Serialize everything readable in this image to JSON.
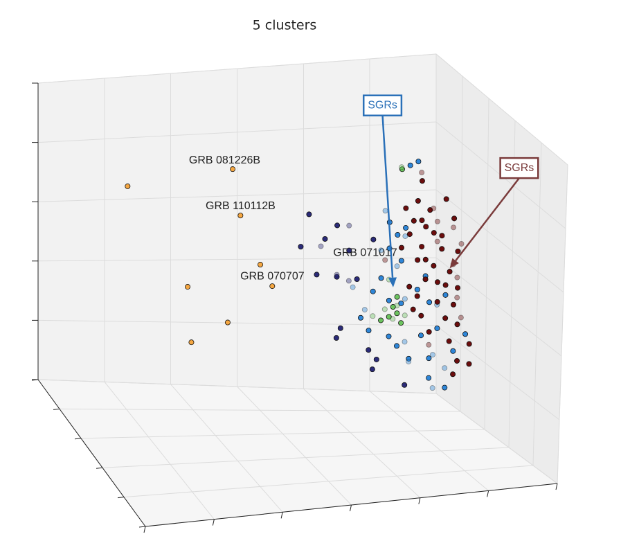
{
  "chart_data": {
    "type": "scatter3d",
    "title": "5 clusters",
    "xlim": [
      0,
      100
    ],
    "ylim": [
      0,
      100
    ],
    "zlim": [
      0,
      100
    ],
    "xticks": [
      0,
      16.7,
      33.3,
      50,
      66.7,
      83.3,
      100
    ],
    "yticks": [
      0,
      20,
      40,
      60,
      80,
      100
    ],
    "zticks": [
      0,
      20,
      40,
      60,
      80,
      100
    ],
    "grid": true,
    "depthshade": true,
    "series": [
      {
        "color": "#f5a742",
        "x": [
          14,
          40,
          42,
          47,
          50,
          29,
          39,
          30
        ],
        "y": [
          30,
          30,
          30,
          30,
          30,
          30,
          30,
          30
        ],
        "z": [
          78,
          81,
          66,
          50,
          43,
          44,
          32,
          26
        ]
      },
      {
        "color": "#2b2b78",
        "x": [
          59,
          66,
          57,
          63,
          72,
          75,
          69,
          65,
          61,
          66,
          69,
          71,
          66,
          74,
          75,
          76,
          83,
          67,
          72
        ],
        "y": [
          30,
          30,
          30,
          30,
          20,
          30,
          30,
          20,
          30,
          30,
          20,
          30,
          30,
          30,
          30,
          30,
          30,
          30,
          20
        ],
        "z": [
          65,
          61,
          55,
          57,
          57,
          56,
          53,
          51,
          46,
          45,
          42,
          44,
          26,
          22,
          16,
          19,
          11,
          29,
          40
        ]
      },
      {
        "color": "#2e86d8",
        "x": [
          84,
          86,
          81,
          81,
          79,
          80,
          77,
          75,
          73,
          79,
          82,
          86,
          89,
          93,
          94,
          91,
          87,
          86,
          84,
          89,
          93,
          95,
          98,
          96,
          89,
          93,
          87,
          81,
          79,
          76,
          72,
          86,
          84,
          82,
          88,
          86,
          83,
          79,
          93,
          74
        ],
        "y": [
          30,
          30,
          20,
          30,
          30,
          20,
          30,
          30,
          20,
          30,
          30,
          20,
          30,
          30,
          20,
          30,
          30,
          20,
          30,
          30,
          20,
          30,
          30,
          20,
          30,
          30,
          20,
          30,
          30,
          20,
          30,
          30,
          20,
          30,
          30,
          20,
          30,
          30,
          20,
          30
        ],
        "z": [
          78,
          79,
          61,
          57,
          53,
          49,
          44,
          40,
          38,
          37,
          36,
          34,
          36,
          38,
          32,
          28,
          26,
          21,
          19,
          19,
          17,
          21,
          26,
          13,
          13,
          10,
          15,
          23,
          26,
          31,
          32,
          40,
          44,
          49,
          44,
          53,
          59,
          61,
          7,
          28
        ]
      },
      {
        "color": "#6cc35f",
        "x": [
          82,
          85,
          79,
          81,
          82,
          78,
          81,
          84,
          80,
          83,
          77,
          86,
          81,
          82
        ],
        "y": [
          30,
          20,
          30,
          20,
          30,
          20,
          30,
          20,
          30,
          20,
          30,
          20,
          30,
          20
        ],
        "z": [
          77,
          74,
          32,
          31,
          30,
          29,
          33,
          32,
          35,
          28,
          31,
          29,
          38,
          40
        ]
      },
      {
        "color": "#6b0d0d",
        "x": [
          86,
          83,
          89,
          93,
          87,
          84,
          90,
          94,
          87,
          92,
          96,
          100,
          86,
          90,
          94,
          98,
          88,
          93,
          96,
          99,
          86,
          91,
          95,
          99,
          87,
          93,
          96,
          100,
          89,
          94,
          99,
          92,
          96,
          99,
          95,
          90,
          87,
          85,
          82,
          81,
          84,
          93,
          95,
          98,
          85,
          91,
          88,
          94,
          92,
          88
        ],
        "y": [
          30,
          30,
          30,
          20,
          30,
          30,
          30,
          20,
          30,
          30,
          30,
          20,
          30,
          30,
          30,
          20,
          30,
          30,
          30,
          20,
          30,
          30,
          30,
          20,
          30,
          30,
          30,
          20,
          30,
          30,
          30,
          20,
          30,
          30,
          30,
          20,
          30,
          30,
          30,
          20,
          30,
          30,
          30,
          20,
          30,
          30,
          30,
          20,
          30,
          30
        ],
        "z": [
          67,
          65,
          64,
          61,
          61,
          57,
          57,
          57,
          53,
          52,
          51,
          50,
          49,
          47,
          45,
          44,
          43,
          41,
          40,
          40,
          38,
          36,
          35,
          34,
          32,
          31,
          29,
          28,
          27,
          24,
          23,
          20,
          18,
          17,
          14,
          72,
          73,
          61,
          53,
          46,
          41,
          67,
          61,
          55,
          34,
          42,
          49,
          51,
          56,
          59
        ]
      }
    ],
    "annotations": [
      {
        "text": "GRB 081226B",
        "xytext": [
          38,
          30,
          84
        ]
      },
      {
        "text": "GRB 110112B",
        "xytext": [
          42,
          30,
          69
        ]
      },
      {
        "text": "GRB 071017",
        "xytext": [
          73,
          30,
          52
        ]
      },
      {
        "text": "GRB 070707",
        "xytext": [
          50,
          30,
          46
        ]
      }
    ],
    "callouts": [
      {
        "text": "SGRs",
        "color": "#2a70b8",
        "xy": [
          80,
          30,
          41
        ],
        "xytext": [
          77,
          30,
          97
        ]
      },
      {
        "text": "SGRs",
        "color": "#7a3b3b",
        "xy": [
          94,
          30,
          46
        ],
        "xytext": [
          98,
          70,
          89
        ]
      }
    ]
  }
}
